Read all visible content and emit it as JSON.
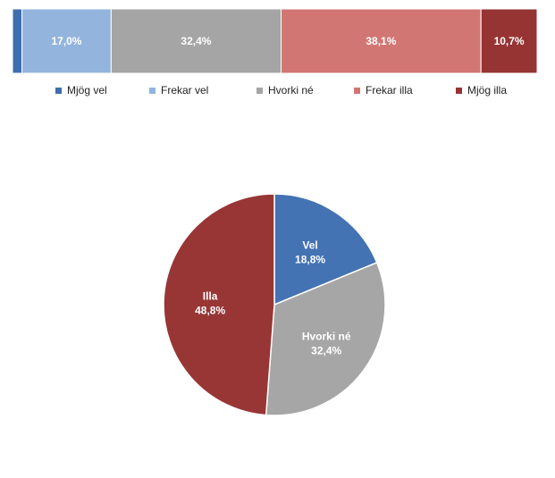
{
  "chart_data": [
    {
      "type": "bar",
      "orientation": "horizontal-stacked-100",
      "categories": [
        "Mjög vel",
        "Frekar vel",
        "Hvorki né",
        "Frekar illa",
        "Mjög illa"
      ],
      "values": [
        1.8,
        17.0,
        32.4,
        38.1,
        10.7
      ],
      "data_labels": [
        "",
        "17,0%",
        "32,4%",
        "38,1%",
        "10,7%"
      ],
      "colors": [
        "#3E6EAD",
        "#93B4DC",
        "#A5A5A5",
        "#D17672",
        "#963434"
      ],
      "legend_placement": "bottom",
      "grid": false
    },
    {
      "type": "pie",
      "slices": [
        {
          "label": "Vel",
          "value": 18.8,
          "value_label": "18,8%",
          "color": "#4473B4"
        },
        {
          "label": "Hvorki né",
          "value": 32.4,
          "value_label": "32,4%",
          "color": "#A6A6A6"
        },
        {
          "label": "Illa",
          "value": 48.8,
          "value_label": "48,8%",
          "color": "#973635"
        }
      ]
    }
  ]
}
